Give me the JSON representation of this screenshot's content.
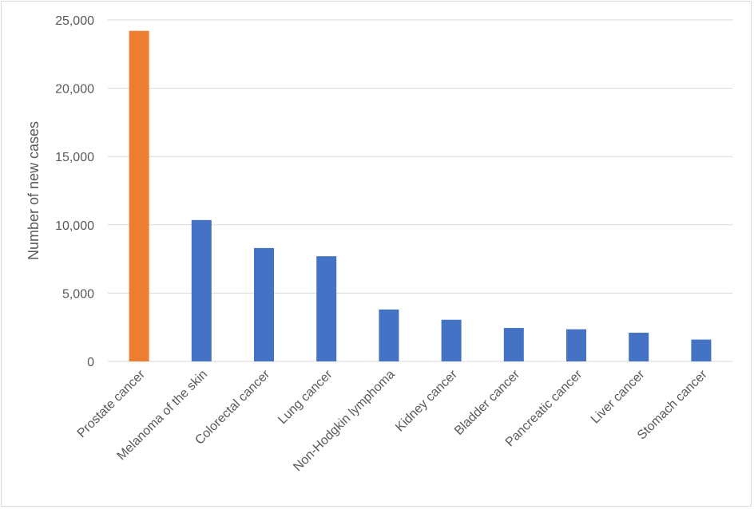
{
  "chart_data": {
    "type": "bar",
    "title": "",
    "xlabel": "",
    "ylabel": "Number of new cases",
    "ylim": [
      0,
      25000
    ],
    "yticks": [
      0,
      5000,
      10000,
      15000,
      20000,
      25000
    ],
    "ytick_labels": [
      "0",
      "5,000",
      "10,000",
      "15,000",
      "20,000",
      "25,000"
    ],
    "grid": true,
    "legend": "none",
    "categories": [
      "Prostate cancer",
      "Melanoma of the skin",
      "Colorectal cancer",
      "Lung cancer",
      "Non-Hodgkin lymphoma",
      "Kidney cancer",
      "Bladder cancer",
      "Pancreatic cancer",
      "Liver cancer",
      "Stomach cancer"
    ],
    "values": [
      24200,
      10350,
      8300,
      7700,
      3800,
      3050,
      2450,
      2350,
      2100,
      1600
    ],
    "colors": {
      "highlight": "#ED7D31",
      "default": "#4472C4",
      "grid": "#d9d9d9",
      "text": "#595959"
    },
    "highlight_index": 0
  }
}
